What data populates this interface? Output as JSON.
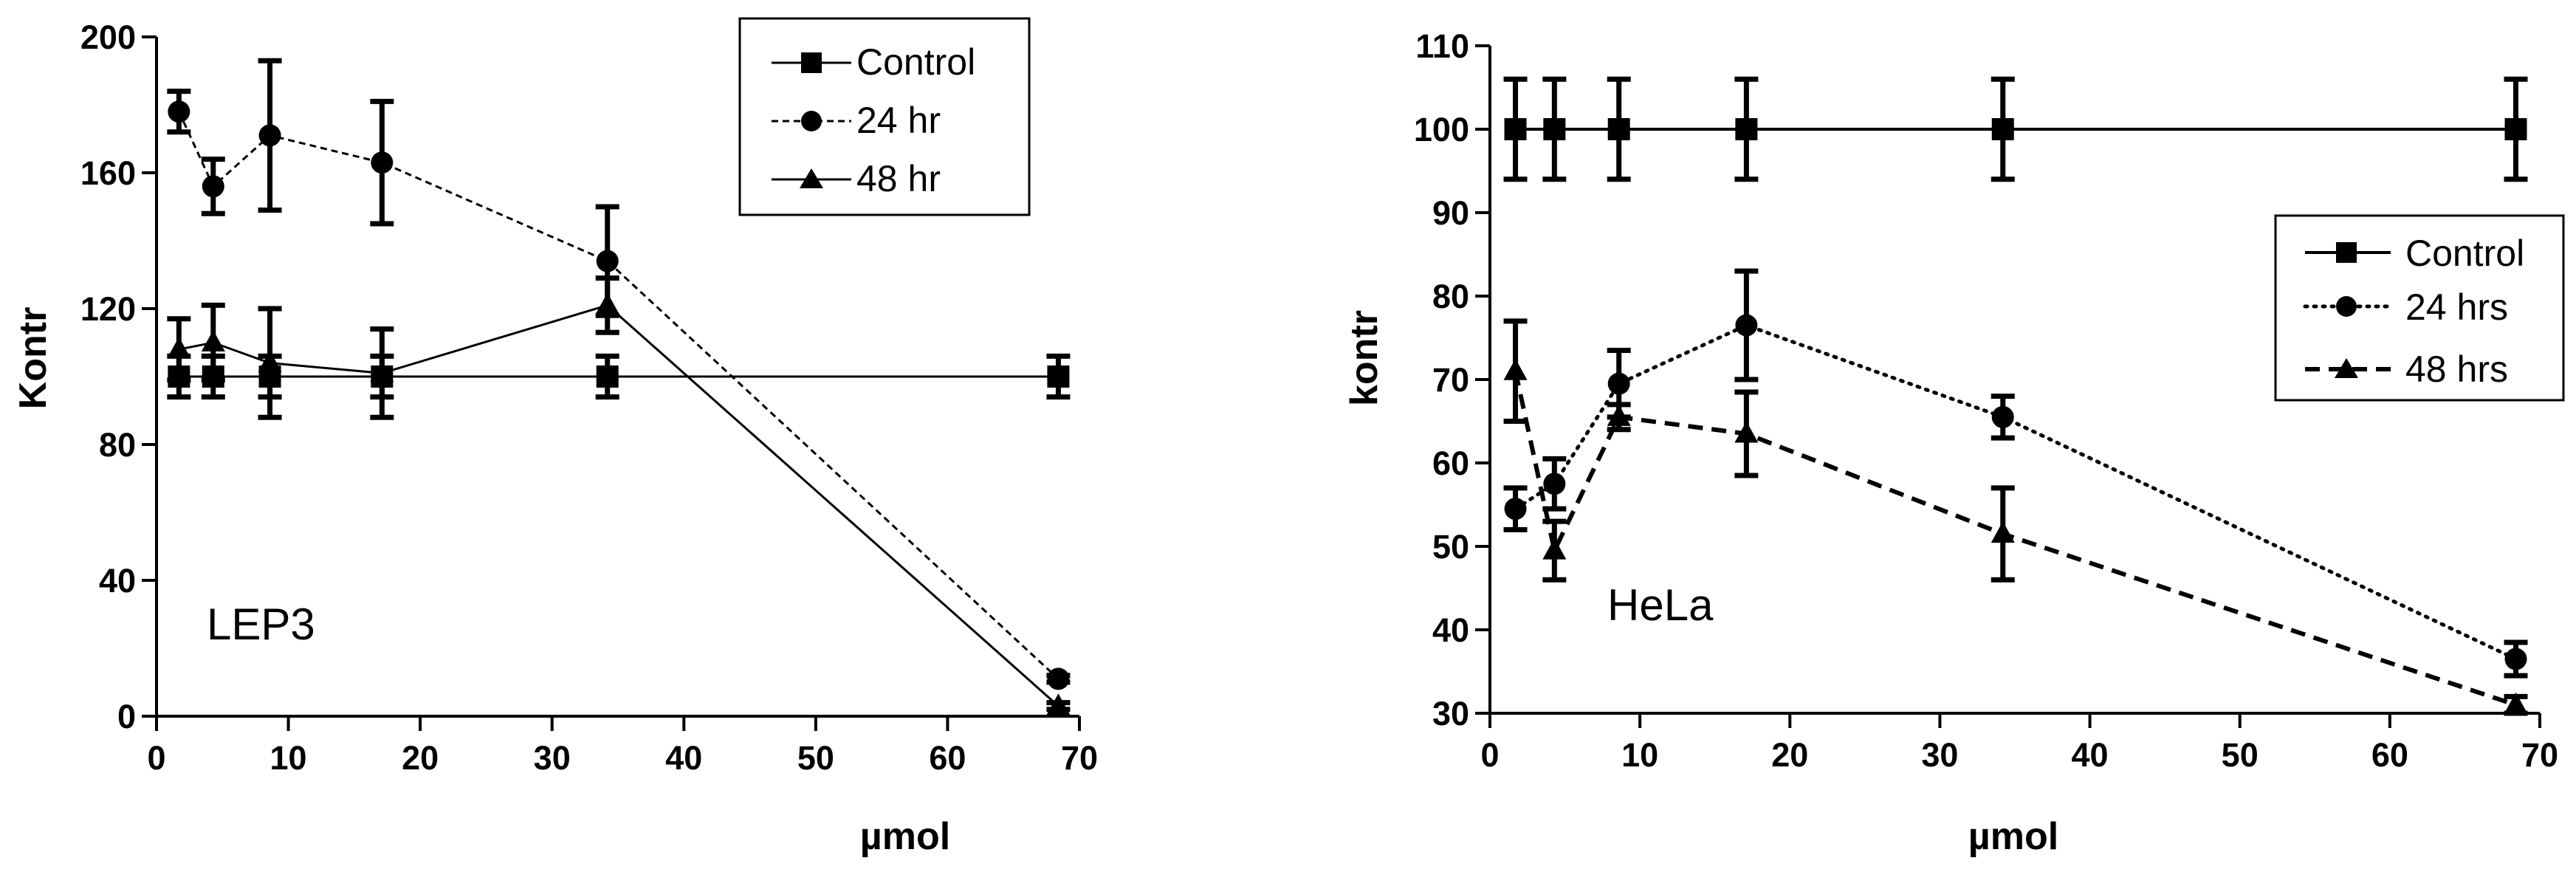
{
  "chart_data": [
    {
      "type": "line",
      "title": "",
      "annotation": "LEP3",
      "xlabel": "µmol",
      "ylabel": "Kontr",
      "xlim": [
        0,
        70
      ],
      "ylim": [
        0,
        200
      ],
      "xticks": [
        0,
        10,
        20,
        30,
        40,
        50,
        60,
        70
      ],
      "yticks": [
        0,
        40,
        80,
        120,
        160,
        200
      ],
      "xtick_labels": [
        "0",
        "10",
        "20",
        "30",
        "40",
        "50",
        "60",
        "70"
      ],
      "ytick_labels": [
        "0",
        "40",
        "80",
        "120",
        "160",
        "200"
      ],
      "legend_position": "top-right",
      "series": [
        {
          "name": "Control",
          "marker": "square",
          "line": "solid",
          "x": [
            1.7,
            4.3,
            8.6,
            17.1,
            34.2,
            68.4
          ],
          "y": [
            100,
            100,
            100,
            100,
            100,
            100
          ],
          "err": [
            6,
            6,
            6,
            6,
            6,
            6
          ]
        },
        {
          "name": "24 hr",
          "marker": "circle",
          "line": "dashed",
          "x": [
            1.7,
            4.3,
            8.6,
            17.1,
            34.2,
            68.4
          ],
          "y": [
            178,
            156,
            171,
            163,
            134,
            11
          ],
          "err": [
            6,
            8,
            22,
            18,
            16,
            1
          ]
        },
        {
          "name": "48 hr",
          "marker": "triangle",
          "line": "solid",
          "x": [
            1.7,
            4.3,
            8.6,
            17.1,
            34.2,
            68.4
          ],
          "y": [
            108,
            110,
            104,
            101,
            121,
            3
          ],
          "err": [
            9,
            11,
            16,
            13,
            8,
            1
          ]
        }
      ]
    },
    {
      "type": "line",
      "title": "",
      "annotation": "HeLa",
      "xlabel": "µmol",
      "ylabel": "kontr",
      "xlim": [
        0,
        70
      ],
      "ylim": [
        30,
        110
      ],
      "xticks": [
        0,
        10,
        20,
        30,
        40,
        50,
        60,
        70
      ],
      "yticks": [
        30,
        40,
        50,
        60,
        70,
        80,
        90,
        100,
        110
      ],
      "xtick_labels": [
        "0",
        "10",
        "20",
        "30",
        "40",
        "50",
        "60",
        "70"
      ],
      "ytick_labels": [
        "30",
        "40",
        "50",
        "60",
        "70",
        "80",
        "90",
        "100",
        "110"
      ],
      "legend_position": "center-right",
      "series": [
        {
          "name": "Control",
          "marker": "square",
          "line": "solid",
          "x": [
            1.7,
            4.3,
            8.6,
            17.1,
            34.2,
            68.4
          ],
          "y": [
            100,
            100,
            100,
            100,
            100,
            100
          ],
          "err": [
            6,
            6,
            6,
            6,
            6,
            6
          ]
        },
        {
          "name": "24 hrs",
          "marker": "circle",
          "line": "dotted",
          "x": [
            1.7,
            4.3,
            8.6,
            17.1,
            34.2,
            68.4
          ],
          "y": [
            54.5,
            57.5,
            69.5,
            76.5,
            65.5,
            36.5
          ],
          "err": [
            2.5,
            3,
            4,
            6.5,
            2.5,
            2
          ]
        },
        {
          "name": "48 hrs",
          "marker": "triangle",
          "line": "dashed",
          "x": [
            1.7,
            4.3,
            8.6,
            17.1,
            34.2,
            68.4
          ],
          "y": [
            71,
            49.5,
            65.5,
            63.5,
            51.5,
            31
          ],
          "err": [
            6,
            3.5,
            1.5,
            5,
            5.5,
            1
          ]
        }
      ]
    }
  ]
}
